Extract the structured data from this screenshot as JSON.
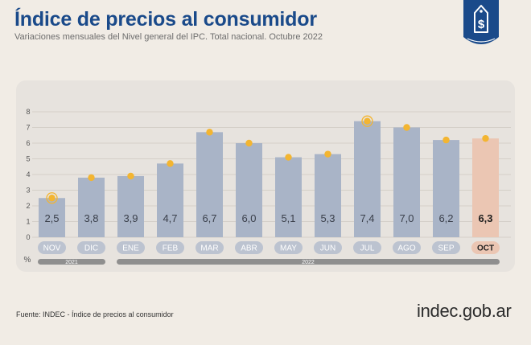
{
  "header": {
    "title": "Índice de precios al consumidor",
    "subtitle": "Variaciones mensuales del Nivel general del IPC. Total nacional. Octubre 2022"
  },
  "footer": {
    "source": "Fuente: INDEC - Índice de precios al consumidor",
    "logo_text": "indec.gob.ar"
  },
  "badge": {
    "icon": "price-tag-dollar-icon",
    "glyph": "$"
  },
  "colors": {
    "bar": "#a9b4c7",
    "bar_highlight": "#ebc6b3",
    "marker": "#f3b531",
    "title": "#1a4a8a",
    "pill": "#bcc3d0",
    "pill_highlight": "#ebc6b3",
    "year_pill": "#8f8f8f"
  },
  "chart_data": {
    "type": "bar",
    "categories": [
      "NOV",
      "DIC",
      "ENE",
      "FEB",
      "MAR",
      "ABR",
      "MAY",
      "JUN",
      "JUL",
      "AGO",
      "SEP",
      "OCT"
    ],
    "values": [
      2.5,
      3.8,
      3.9,
      4.7,
      6.7,
      6.0,
      5.1,
      5.3,
      7.4,
      7.0,
      6.2,
      6.3
    ],
    "value_labels": [
      "2,5",
      "3,8",
      "3,9",
      "4,7",
      "6,7",
      "6,0",
      "5,1",
      "5,3",
      "7,4",
      "7,0",
      "6,2",
      "6,3"
    ],
    "highlight_index": 11,
    "ringed_markers": [
      0,
      8
    ],
    "yticks": [
      "0",
      "1",
      "2",
      "3",
      "4",
      "5",
      "6",
      "7",
      "8"
    ],
    "ylim": [
      0,
      8
    ],
    "yunit": "%",
    "years": [
      {
        "label": "2021",
        "from": 0,
        "to": 1
      },
      {
        "label": "2022",
        "from": 2,
        "to": 11
      }
    ],
    "grid": true
  }
}
